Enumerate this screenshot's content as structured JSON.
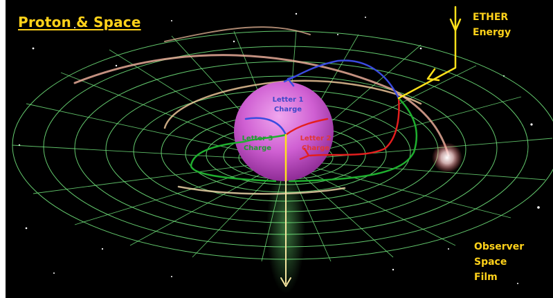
{
  "title": "Proton & Space",
  "ether": {
    "line1": "ETHER",
    "line2": "Energy"
  },
  "observer": {
    "line1": "Observer",
    "line2": "Space",
    "line3": "Film"
  },
  "charges": [
    {
      "line1": "Letter 1",
      "line2": "Charge",
      "color": "#3f46c8"
    },
    {
      "line1": "Letter 2",
      "line2": "Charge",
      "color": "#e23636"
    },
    {
      "line1": "Letter 3",
      "line2": "Charge",
      "color": "#1f9a2f"
    }
  ],
  "colors": {
    "label_yellow": "#ffd21a",
    "grid_green": "#6fe07a",
    "sphere": "#cf5fd2",
    "blue_path": "#3a4be0",
    "red_path": "#e41e1e",
    "green_path": "#1fb02f",
    "yellow_path": "#ffe11a"
  }
}
